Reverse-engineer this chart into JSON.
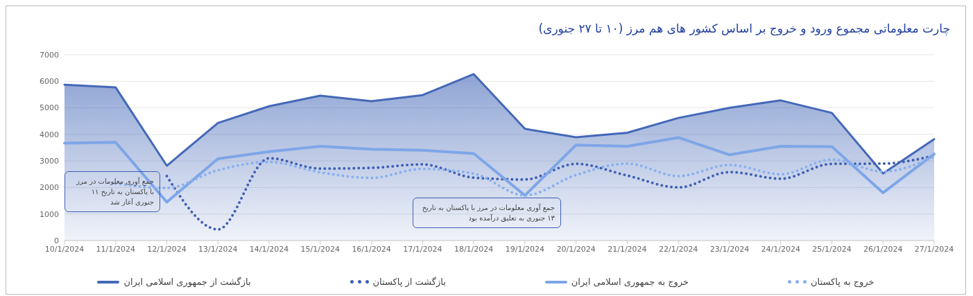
{
  "chart_data": {
    "type": "line",
    "title": "چارت معلوماتی مجموع ورود و خروج بر اساس کشور های هم مرز (۱۰ تا ۲۷ جنوری)",
    "categories": [
      "10/1/2024",
      "11/1/2024",
      "12/1/2024",
      "13/1/2024",
      "14/1/2024",
      "15/1/2024",
      "16/1/2024",
      "17/1/2024",
      "18/1/2024",
      "19/1/2024",
      "20/1/2024",
      "21/1/2024",
      "22/1/2024",
      "23/1/2024",
      "24/1/2024",
      "25/1/2024",
      "26/1/2024",
      "27/1/2024"
    ],
    "series": [
      {
        "name": "بازگشت از جمهوری اسلامی ایران",
        "type": "area",
        "color": "#4468b8",
        "line_style": "solid",
        "values": [
          5870,
          5770,
          2820,
          4430,
          5060,
          5460,
          5250,
          5480,
          6270,
          4210,
          3890,
          4060,
          4620,
          5000,
          5280,
          4810,
          2530,
          3820
        ]
      },
      {
        "name": "بازگشت از پاکستان",
        "color": "#3f5fb3",
        "line_style": "dotted",
        "values": [
          null,
          null,
          2430,
          420,
          3100,
          2710,
          2740,
          2870,
          2370,
          2300,
          2890,
          2450,
          2000,
          2580,
          2330,
          2890,
          2900,
          3200
        ]
      },
      {
        "name": "خروج به جمهوری اسلامی ایران",
        "color": "#7ea6e8",
        "line_style": "solid",
        "values": [
          3670,
          3700,
          1450,
          3080,
          3350,
          3550,
          3440,
          3400,
          3280,
          1700,
          3600,
          3550,
          3880,
          3230,
          3550,
          3540,
          1800,
          3260
        ]
      },
      {
        "name": "خروج به پاکستان",
        "color": "#8ab0ee",
        "line_style": "dotted",
        "values": [
          null,
          2150,
          1980,
          2650,
          2960,
          2570,
          2360,
          2700,
          2520,
          1700,
          2470,
          2900,
          2430,
          2850,
          2500,
          3050,
          2600,
          3150
        ]
      }
    ],
    "ylim": [
      0,
      7000
    ],
    "yticks": [
      0,
      1000,
      2000,
      3000,
      4000,
      5000,
      6000,
      7000
    ],
    "grid": "y",
    "legend": "bottom",
    "marker": "none",
    "annotations": [
      "جمع آوری معلومات در مرز با پاکستان به تاریخ ۱۱ جنوری آغاز شد",
      "جمع آوری معلومات در مرز با پاکستان به تاریخ ۱۳ جنوری به تعلیق درآمده بود"
    ]
  }
}
